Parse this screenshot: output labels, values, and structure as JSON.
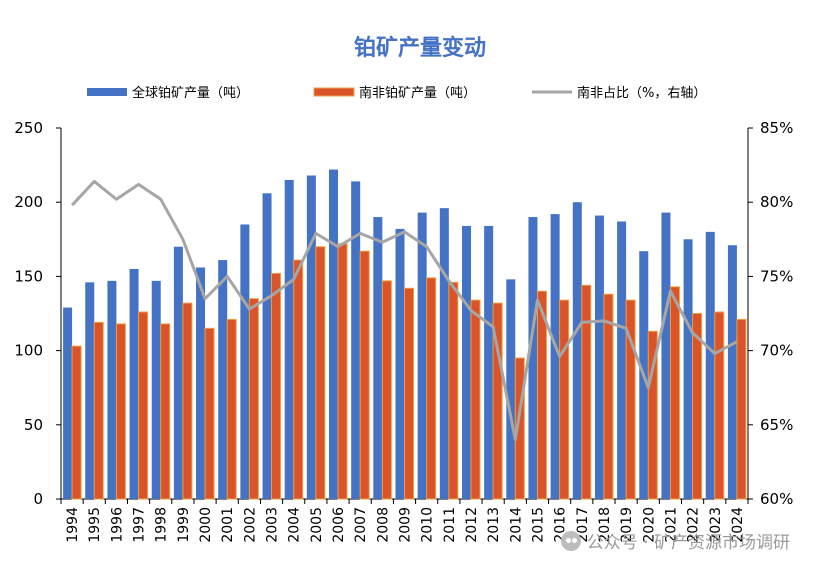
{
  "chart_data": {
    "type": "bar",
    "title": "铂矿产量变动",
    "categories": [
      "1994",
      "1995",
      "1996",
      "1997",
      "1998",
      "1999",
      "2000",
      "2001",
      "2002",
      "2003",
      "2004",
      "2005",
      "2006",
      "2007",
      "2008",
      "2009",
      "2010",
      "2011",
      "2012",
      "2013",
      "2014",
      "2015",
      "2016",
      "2017",
      "2018",
      "2019",
      "2020",
      "2021",
      "2022",
      "2023",
      "2024"
    ],
    "series": [
      {
        "name": "全球铂矿产量（吨）",
        "type": "bar",
        "axis": "left",
        "color": "#4472C4",
        "values": [
          129,
          146,
          147,
          155,
          147,
          170,
          156,
          161,
          185,
          206,
          215,
          218,
          222,
          214,
          190,
          182,
          193,
          196,
          184,
          184,
          148,
          190,
          192,
          200,
          191,
          187,
          167,
          193,
          175,
          180,
          171
        ]
      },
      {
        "name": "南非铂矿产量（吨）",
        "type": "bar",
        "axis": "left",
        "color": "#D9532B",
        "values": [
          103,
          119,
          118,
          126,
          118,
          132,
          115,
          121,
          135,
          152,
          161,
          170,
          172,
          167,
          147,
          142,
          149,
          146,
          134,
          132,
          95,
          140,
          134,
          144,
          138,
          134,
          113,
          143,
          125,
          126,
          121
        ]
      },
      {
        "name": "南非占比（%，右轴）",
        "type": "line",
        "axis": "right",
        "color": "#A6A6A6",
        "values": [
          79.8,
          81.4,
          80.2,
          81.2,
          80.2,
          77.5,
          73.5,
          75.0,
          72.8,
          73.7,
          74.8,
          77.9,
          77.0,
          77.9,
          77.3,
          78.0,
          77.0,
          74.7,
          72.7,
          71.6,
          64.0,
          73.4,
          69.6,
          71.9,
          72.0,
          71.5,
          67.5,
          74.0,
          71.2,
          69.8,
          70.6
        ]
      }
    ],
    "y_left": {
      "min": 0,
      "max": 250,
      "ticks": [
        0,
        50,
        100,
        150,
        200,
        250
      ]
    },
    "y_right": {
      "min": 60,
      "max": 85,
      "ticks": [
        "60%",
        "65%",
        "70%",
        "75%",
        "80%",
        "85%"
      ]
    },
    "grid": false,
    "legend_position": "top"
  },
  "watermark": "公众号 · 矿产资源市场调研"
}
